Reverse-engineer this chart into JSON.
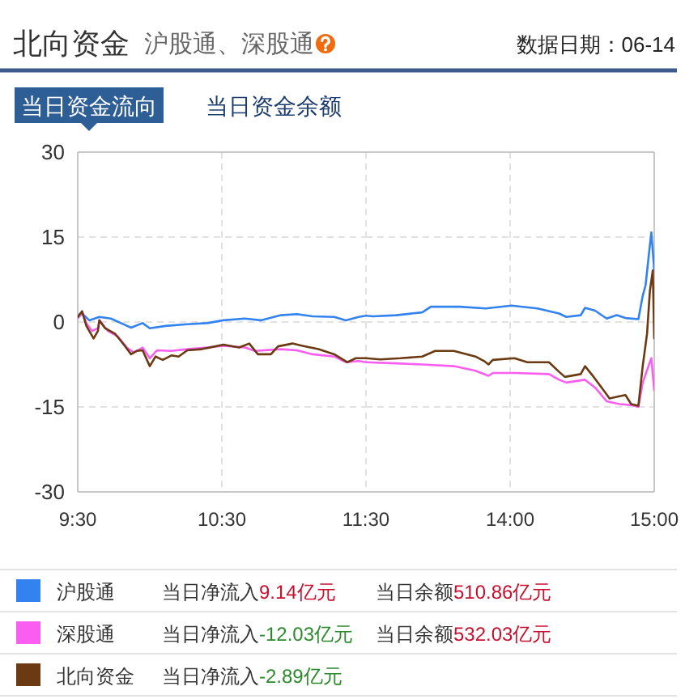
{
  "chart_data": [
    {
      "type": "line",
      "title": "北向资金",
      "subtitle": "沪股通、深股通",
      "annotations": [
        "数据日期：06-14",
        "当日资金流向",
        "当日资金余额",
        "当日净流入9.14亿元",
        "当日余额510.86亿元",
        "当日净流入-12.03亿元",
        "当日余额532.03亿元",
        "当日净流入-2.89亿元"
      ],
      "xlim": [
        9.5,
        11.5
      ],
      "xticks": [
        {
          "value": 9.5,
          "label": "9:30"
        },
        {
          "value": 10.5,
          "label": "10:30"
        },
        {
          "value": 11.5,
          "label": "11:30"
        }
      ],
      "ylim": [
        -30,
        30
      ],
      "yticks": [
        -30,
        -15,
        0,
        15,
        30
      ],
      "grid": true,
      "legend": "bottom",
      "line_style": "solid",
      "series": [
        {
          "name": "沪股通",
          "color": "#3283ef",
          "x": [
            9.5,
            9.53,
            9.58,
            9.65,
            9.73,
            9.8,
            9.87,
            9.95,
            10.0,
            10.11,
            10.26,
            10.4,
            10.51,
            10.66,
            10.77,
            10.91,
            11.02,
            11.13,
            11.28,
            11.36,
            11.45,
            11.5
          ],
          "values": [
            0.7,
            1.5,
            0.3,
            0.9,
            0.6,
            -0.2,
            -1.0,
            -0.2,
            -1.1,
            -0.7,
            -0.4,
            -0.2,
            0.3,
            0.6,
            0.3,
            1.2,
            1.4,
            1.0,
            0.9,
            0.3,
            0.9,
            1.1
          ]
        },
        {
          "name": "深股通",
          "color": "#fa5ef0",
          "x": [
            9.5,
            9.53,
            9.56,
            9.6,
            9.64,
            9.65,
            9.71,
            9.78,
            9.84,
            9.89,
            9.95,
            10.0,
            10.05,
            10.15,
            10.26,
            10.4,
            10.51,
            10.66,
            10.73,
            10.91,
            11.02,
            11.13,
            11.28,
            11.36,
            11.45,
            11.5
          ],
          "values": [
            0.7,
            1.7,
            -0.2,
            -1.6,
            -1.1,
            0.3,
            -1.6,
            -2.6,
            -4.5,
            -5.4,
            -4.5,
            -6.4,
            -5.0,
            -5.1,
            -4.8,
            -4.5,
            -4.2,
            -4.5,
            -5.1,
            -4.8,
            -5.0,
            -5.7,
            -6.1,
            -7.1,
            -6.9,
            -7.1
          ]
        },
        {
          "name": "北向资金",
          "color": "#6b3a12",
          "x": [
            9.5,
            9.53,
            9.56,
            9.61,
            9.64,
            9.65,
            9.69,
            9.76,
            9.82,
            9.87,
            9.91,
            9.95,
            10.0,
            10.04,
            10.09,
            10.15,
            10.2,
            10.26,
            10.36,
            10.51,
            10.62,
            10.69,
            10.75,
            10.84,
            10.89,
            10.99,
            11.06,
            11.17,
            11.28,
            11.37,
            11.43,
            11.5
          ],
          "values": [
            0.9,
            1.9,
            -0.7,
            -2.9,
            -1.6,
            0.3,
            -1.1,
            -2.1,
            -4.0,
            -5.7,
            -5.1,
            -5.0,
            -7.8,
            -6.1,
            -6.7,
            -5.9,
            -6.1,
            -5.0,
            -4.8,
            -4.0,
            -4.5,
            -3.8,
            -5.7,
            -5.7,
            -4.3,
            -3.8,
            -4.2,
            -4.8,
            -5.7,
            -7.1,
            -6.4,
            -6.4
          ]
        }
      ]
    },
    {
      "type": "line",
      "xlim": [
        13,
        15
      ],
      "xticks": [
        {
          "value": 14,
          "label": "14:00"
        },
        {
          "value": 15,
          "label": "15:00"
        }
      ],
      "ylim": [
        -30,
        30
      ],
      "yticks": [
        -30,
        -15,
        0,
        15,
        30
      ],
      "tick_labels": "x",
      "grid": true,
      "line_style": "solid",
      "series": [
        {
          "color": "#3283ef",
          "x": [
            13.0,
            13.05,
            13.21,
            13.39,
            13.45,
            13.65,
            13.83,
            14.01,
            14.19,
            14.34,
            14.39,
            14.49,
            14.52,
            14.59,
            14.67,
            14.74,
            14.8,
            14.89,
            14.92,
            14.94,
            14.97,
            14.98,
            15.0
          ],
          "values": [
            1.1,
            1.0,
            1.2,
            1.7,
            2.7,
            2.7,
            2.4,
            2.9,
            2.4,
            1.5,
            0.9,
            1.2,
            2.5,
            2.0,
            0.6,
            1.2,
            0.7,
            0.5,
            4.6,
            6.5,
            13.6,
            15.8,
            9.14
          ]
        },
        {
          "color": "#fa5ef0",
          "x": [
            13.0,
            13.21,
            13.39,
            13.61,
            13.76,
            13.85,
            13.88,
            14.03,
            14.27,
            14.34,
            14.39,
            14.52,
            14.59,
            14.67,
            14.76,
            14.85,
            14.89,
            14.92,
            14.96,
            14.98,
            15.0
          ],
          "values": [
            -7.1,
            -7.3,
            -7.5,
            -7.8,
            -8.6,
            -9.5,
            -9.0,
            -9.0,
            -9.2,
            -10.2,
            -10.7,
            -10.2,
            -11.6,
            -14.0,
            -14.5,
            -14.7,
            -15.0,
            -10.7,
            -7.8,
            -6.4,
            -12.03
          ]
        },
        {
          "color": "#6b3a12",
          "x": [
            13.0,
            13.1,
            13.24,
            13.39,
            13.48,
            13.61,
            13.76,
            13.82,
            13.85,
            13.88,
            14.03,
            14.12,
            14.27,
            14.34,
            14.38,
            14.49,
            14.52,
            14.58,
            14.65,
            14.69,
            14.76,
            14.8,
            14.84,
            14.89,
            14.92,
            14.95,
            14.97,
            14.99,
            15.0
          ],
          "values": [
            -6.4,
            -6.6,
            -6.4,
            -6.1,
            -5.1,
            -5.1,
            -6.1,
            -6.9,
            -7.5,
            -6.7,
            -6.4,
            -7.1,
            -7.1,
            -8.8,
            -9.7,
            -9.2,
            -7.8,
            -9.7,
            -12.1,
            -13.5,
            -13.1,
            -12.9,
            -14.5,
            -14.8,
            -7.8,
            -2.1,
            5.5,
            9.1,
            -2.89
          ]
        }
      ]
    }
  ]
}
